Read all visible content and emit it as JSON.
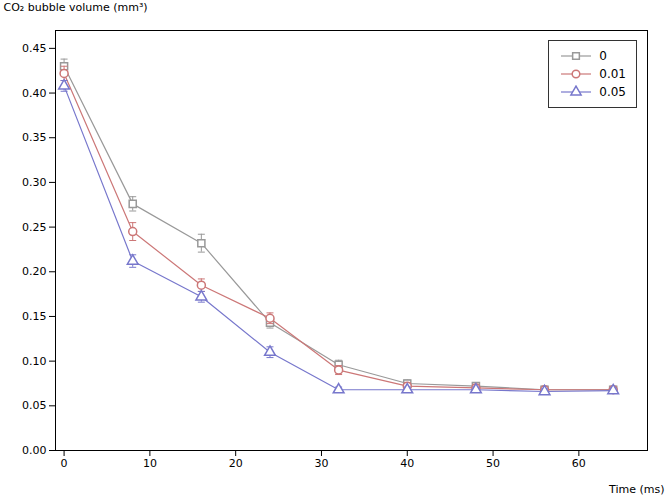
{
  "chart_data": {
    "type": "line",
    "xlabel": "Time (ms)",
    "ylabel": "CO₂ bubble volume (mm³)",
    "x": [
      0,
      8,
      16,
      24,
      32,
      40,
      48,
      56,
      64
    ],
    "series": [
      {
        "name": "0",
        "color": "#999999",
        "marker": "square",
        "values": [
          0.43,
          0.276,
          0.232,
          0.143,
          0.096,
          0.075,
          0.072,
          0.068,
          0.068
        ],
        "yerr": [
          0.008,
          0.008,
          0.01,
          0.006,
          0.005,
          0.004,
          0.004,
          0.004,
          0.004
        ]
      },
      {
        "name": "0.01",
        "color": "#cc7777",
        "marker": "circle",
        "values": [
          0.422,
          0.245,
          0.185,
          0.148,
          0.09,
          0.072,
          0.07,
          0.068,
          0.068
        ],
        "yerr": [
          0.008,
          0.01,
          0.007,
          0.006,
          0.005,
          0.004,
          0.004,
          0.003,
          0.003
        ]
      },
      {
        "name": "0.05",
        "color": "#7777cc",
        "marker": "triangle",
        "values": [
          0.408,
          0.212,
          0.172,
          0.11,
          0.068,
          0.068,
          0.068,
          0.066,
          0.067
        ],
        "yerr": [
          0.006,
          0.007,
          0.006,
          0.006,
          0.003,
          0.003,
          0.003,
          0.003,
          0.003
        ]
      }
    ],
    "xlim": [
      -1,
      68
    ],
    "ylim": [
      0.0,
      0.47
    ],
    "xticks": [
      0,
      10,
      20,
      30,
      40,
      50,
      60
    ],
    "yticks": [
      {
        "value": 0.0,
        "label": "0.00"
      },
      0.05,
      {
        "value": 0.1,
        "label": "0.10"
      },
      0.15,
      {
        "value": 0.2,
        "label": "0.20"
      },
      0.25,
      {
        "value": 0.3,
        "label": "0.30"
      },
      0.35,
      {
        "value": 0.4,
        "label": "0.40"
      },
      0.45
    ],
    "grid": false,
    "legend": "upper right"
  }
}
